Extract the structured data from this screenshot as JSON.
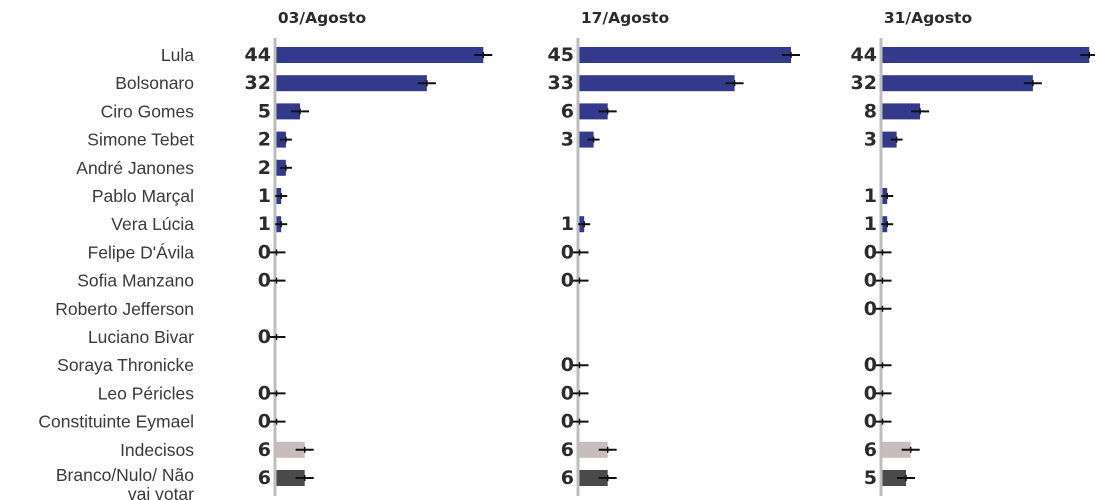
{
  "chart_data": {
    "type": "bar",
    "orientation": "horizontal",
    "grid": false,
    "colors": {
      "candidate": "#333a8c",
      "indecisos": "#c8bcbc",
      "branco_nulo": "#4a4a4a",
      "error_bar": "#111111",
      "axis": "#bdbdbd"
    },
    "categories": [
      "Lula",
      "Bolsonaro",
      "Ciro Gomes",
      "Simone Tebet",
      "André Janones",
      "Pablo Marçal",
      "Vera Lúcia",
      "Felipe D'Ávila",
      "Sofia Manzano",
      "Roberto Jefferson",
      "Luciano Bivar",
      "Soraya Thronicke",
      "Leo Péricles",
      "Constituinte Eymael",
      "Indecisos",
      "Branco/Nulo/ Não vai votar"
    ],
    "category_lines": [
      [
        "Lula"
      ],
      [
        "Bolsonaro"
      ],
      [
        "Ciro Gomes"
      ],
      [
        "Simone Tebet"
      ],
      [
        "André Janones"
      ],
      [
        "Pablo Marçal"
      ],
      [
        "Vera Lúcia"
      ],
      [
        "Felipe D'Ávila"
      ],
      [
        "Sofia Manzano"
      ],
      [
        "Roberto Jefferson"
      ],
      [
        "Luciano Bivar"
      ],
      [
        "Soraya Thronicke"
      ],
      [
        "Leo Péricles"
      ],
      [
        "Constituinte Eymael"
      ],
      [
        "Indecisos"
      ],
      [
        "Branco/Nulo/ Não",
        "vai votar"
      ]
    ],
    "series": [
      {
        "name": "03/Agosto",
        "values": [
          44,
          32,
          5,
          2,
          2,
          1,
          1,
          0,
          0,
          null,
          0,
          null,
          0,
          0,
          6,
          6
        ]
      },
      {
        "name": "17/Agosto",
        "values": [
          45,
          33,
          6,
          3,
          null,
          null,
          1,
          0,
          0,
          null,
          null,
          0,
          0,
          0,
          6,
          6
        ]
      },
      {
        "name": "31/Agosto",
        "values": [
          44,
          32,
          8,
          3,
          null,
          1,
          1,
          0,
          0,
          0,
          null,
          0,
          0,
          0,
          6,
          5
        ]
      }
    ]
  }
}
